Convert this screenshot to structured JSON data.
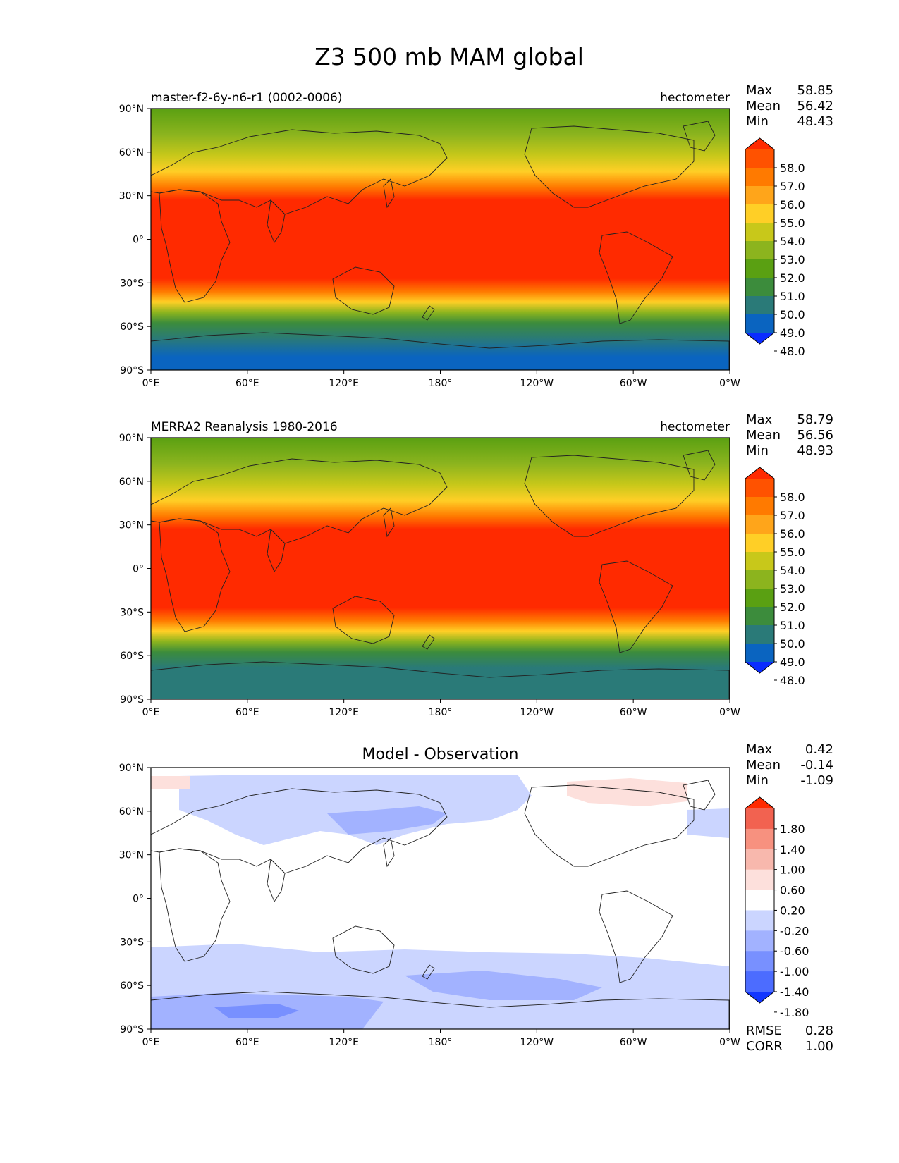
{
  "title": "Z3 500 mb MAM global",
  "lat_ticks": [
    "90°N",
    "60°N",
    "30°N",
    "0°",
    "30°S",
    "60°S",
    "90°S"
  ],
  "lon_ticks": [
    "0°E",
    "60°E",
    "120°E",
    "180°",
    "120°W",
    "60°W",
    "0°W"
  ],
  "panels": [
    {
      "left_title": "master-f2-6y-n6-r1 (0002-0006)",
      "center_title": "",
      "units": "hectometer",
      "stats": [
        [
          "Max",
          "58.85"
        ],
        [
          "Mean",
          "56.42"
        ],
        [
          "Min",
          "48.43"
        ]
      ],
      "colorbar": {
        "labels": [
          "58.0",
          "57.0",
          "56.0",
          "55.0",
          "54.0",
          "53.0",
          "52.0",
          "51.0",
          "50.0",
          "49.0",
          "48.0"
        ],
        "colors": [
          "#ff2a00",
          "#ff5200",
          "#ff7a00",
          "#ffa51a",
          "#ffcf26",
          "#c8c81a",
          "#8cb41e",
          "#5aa012",
          "#3c8c3c",
          "#2a7a78",
          "#0a64c0",
          "#0a2cff"
        ]
      }
    },
    {
      "left_title": "MERRA2 Reanalysis 1980-2016",
      "center_title": "",
      "units": "hectometer",
      "stats": [
        [
          "Max",
          "58.79"
        ],
        [
          "Mean",
          "56.56"
        ],
        [
          "Min",
          "48.93"
        ]
      ],
      "colorbar": {
        "labels": [
          "58.0",
          "57.0",
          "56.0",
          "55.0",
          "54.0",
          "53.0",
          "52.0",
          "51.0",
          "50.0",
          "49.0",
          "48.0"
        ],
        "colors": [
          "#ff2a00",
          "#ff5200",
          "#ff7a00",
          "#ffa51a",
          "#ffcf26",
          "#c8c81a",
          "#8cb41e",
          "#5aa012",
          "#3c8c3c",
          "#2a7a78",
          "#0a64c0",
          "#0a2cff"
        ]
      }
    },
    {
      "left_title": "",
      "center_title": "Model - Observation",
      "units": "",
      "stats": [
        [
          "Max",
          "0.42"
        ],
        [
          "Mean",
          "-0.14"
        ],
        [
          "Min",
          "-1.09"
        ]
      ],
      "extra_stats": [
        [
          "RMSE",
          "0.28"
        ],
        [
          "CORR",
          "1.00"
        ]
      ],
      "colorbar": {
        "labels": [
          "1.80",
          "1.40",
          "1.00",
          "0.60",
          "0.20",
          "-0.20",
          "-0.60",
          "-1.00",
          "-1.40",
          "-1.80"
        ],
        "colors": [
          "#ff2a00",
          "#f26250",
          "#f7917f",
          "#f8b8ad",
          "#fde0dc",
          "#ffffff",
          "#cbd5ff",
          "#a2b2ff",
          "#7890ff",
          "#4c6cff",
          "#1236ff"
        ]
      }
    }
  ]
}
